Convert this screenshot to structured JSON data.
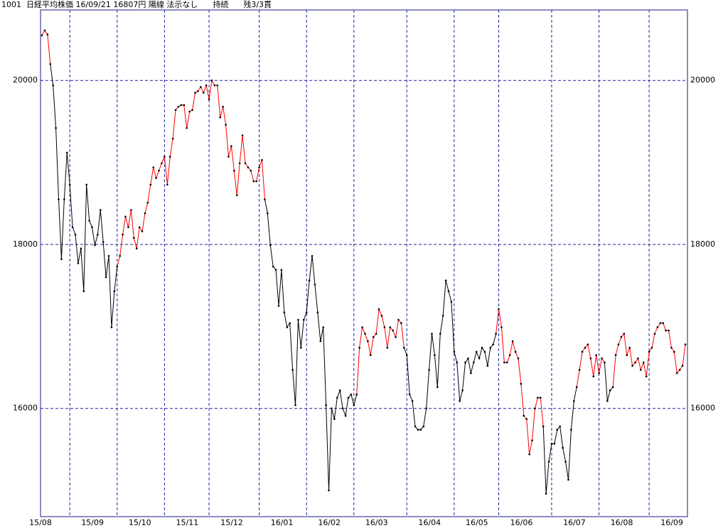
{
  "chart_data": {
    "type": "line",
    "title": "1001  日経平均株価 16/09/21 16807円 陽線 法示なし      持続      残3/3貫",
    "categories": [
      "15/08",
      null,
      null,
      null,
      null,
      null,
      null,
      null,
      null,
      null,
      "15/09",
      null,
      null,
      null,
      null,
      null,
      null,
      null,
      null,
      null,
      null,
      null,
      null,
      null,
      null,
      null,
      null,
      "15/10",
      null,
      null,
      null,
      null,
      null,
      null,
      null,
      null,
      null,
      null,
      null,
      null,
      null,
      null,
      null,
      null,
      "15/11",
      null,
      null,
      null,
      null,
      null,
      null,
      null,
      null,
      null,
      null,
      null,
      null,
      null,
      null,
      null,
      "15/12",
      null,
      null,
      null,
      null,
      null,
      null,
      null,
      null,
      null,
      null,
      null,
      null,
      null,
      null,
      null,
      null,
      null,
      "16/01",
      null,
      null,
      null,
      null,
      null,
      null,
      null,
      null,
      null,
      null,
      null,
      null,
      null,
      null,
      null,
      null,
      "16/02",
      null,
      null,
      null,
      null,
      null,
      null,
      null,
      null,
      null,
      null,
      null,
      null,
      null,
      null,
      null,
      null,
      "16/03",
      null,
      null,
      null,
      null,
      null,
      null,
      null,
      null,
      null,
      null,
      null,
      null,
      null,
      null,
      null,
      null,
      null,
      null,
      "16/04",
      null,
      null,
      null,
      null,
      null,
      null,
      null,
      null,
      null,
      null,
      null,
      null,
      null,
      null,
      null,
      null,
      "16/05",
      null,
      null,
      null,
      null,
      null,
      null,
      null,
      null,
      null,
      null,
      null,
      null,
      null,
      null,
      null,
      "16/06",
      null,
      null,
      null,
      null,
      null,
      null,
      null,
      null,
      null,
      null,
      null,
      null,
      null,
      null,
      null,
      null,
      null,
      null,
      "16/07",
      null,
      null,
      null,
      null,
      null,
      null,
      null,
      null,
      null,
      null,
      null,
      null,
      null,
      null,
      null,
      null,
      "16/08",
      null,
      null,
      null,
      null,
      null,
      null,
      null,
      null,
      null,
      null,
      null,
      null,
      null,
      null,
      null,
      null,
      null,
      "16/09",
      null,
      null,
      null,
      null,
      null,
      null,
      null,
      null,
      null,
      null,
      null,
      null,
      null
    ],
    "series": [
      {
        "color": "#ff0000",
        "values": [
          20550,
          20610,
          20560,
          20200,
          null,
          null,
          null,
          null,
          null,
          null,
          null,
          null,
          null,
          null,
          null,
          null,
          null,
          null,
          null,
          null,
          null,
          null,
          null,
          null,
          null,
          null,
          null,
          17730,
          17860,
          18120,
          18340,
          18210,
          18420,
          18080,
          17950,
          18210,
          18160,
          18380,
          18510,
          18730,
          18940,
          18810,
          18900,
          18990,
          19070,
          18730,
          19070,
          19290,
          19640,
          19680,
          19700,
          19700,
          19420,
          19620,
          19640,
          19850,
          19870,
          19920,
          19850,
          19940,
          19770,
          20000,
          19940,
          19940,
          19550,
          19680,
          19460,
          19070,
          19200,
          18900,
          18600,
          18990,
          19330,
          18990,
          18940,
          18900,
          18770,
          18770,
          18940,
          19030,
          18550,
          null,
          null,
          null,
          null,
          null,
          null,
          null,
          null,
          null,
          null,
          null,
          null,
          null,
          null,
          null,
          null,
          null,
          null,
          null,
          null,
          null,
          null,
          null,
          null,
          null,
          null,
          null,
          null,
          null,
          null,
          null,
          null,
          16170,
          16740,
          16990,
          16910,
          16820,
          16650,
          16870,
          16910,
          17210,
          17130,
          16990,
          16740,
          16990,
          16950,
          16870,
          17080,
          17040,
          16740,
          null,
          null,
          null,
          null,
          null,
          null,
          null,
          null,
          null,
          null,
          null,
          null,
          null,
          null,
          null,
          null,
          null,
          null,
          null,
          null,
          null,
          null,
          null,
          null,
          null,
          null,
          null,
          null,
          null,
          null,
          null,
          null,
          16910,
          17210,
          16990,
          16560,
          16560,
          16650,
          16820,
          16690,
          16610,
          16300,
          15910,
          15870,
          15440,
          15610,
          16000,
          16130,
          16130,
          15780,
          null,
          null,
          null,
          null,
          null,
          null,
          null,
          null,
          null,
          null,
          null,
          16260,
          16470,
          16690,
          16740,
          16780,
          16610,
          16390,
          16650,
          16430,
          16610,
          16560,
          null,
          null,
          16260,
          16650,
          16780,
          16870,
          16910,
          16650,
          16740,
          16520,
          16560,
          16610,
          16470,
          16560,
          16390,
          16690,
          16740,
          16910,
          16990,
          17040,
          17040,
          16950,
          16950,
          16740,
          16690,
          16430,
          16470,
          16520,
          16780
        ]
      },
      {
        "color": "#000000",
        "values": [
          null,
          null,
          null,
          20200,
          19940,
          19420,
          18550,
          17820,
          18550,
          19120,
          18730,
          18210,
          18120,
          17770,
          17950,
          17430,
          18730,
          18290,
          18210,
          17990,
          18120,
          18420,
          18030,
          17600,
          17860,
          16990,
          17430,
          17730,
          null,
          null,
          null,
          null,
          null,
          null,
          null,
          null,
          null,
          null,
          null,
          null,
          null,
          null,
          null,
          null,
          null,
          null,
          null,
          null,
          null,
          null,
          null,
          null,
          null,
          null,
          null,
          null,
          null,
          null,
          null,
          null,
          null,
          null,
          null,
          null,
          null,
          null,
          null,
          null,
          null,
          null,
          null,
          null,
          null,
          null,
          null,
          null,
          null,
          null,
          null,
          null,
          18550,
          18380,
          17990,
          17730,
          17690,
          17250,
          17690,
          17170,
          16990,
          17040,
          16470,
          16040,
          17080,
          16740,
          17080,
          17170,
          17560,
          17860,
          17510,
          17170,
          16820,
          16990,
          16040,
          15000,
          16000,
          15870,
          16130,
          16220,
          16000,
          15910,
          16130,
          16170,
          16040,
          16170,
          null,
          null,
          null,
          null,
          null,
          null,
          null,
          null,
          null,
          null,
          null,
          null,
          null,
          null,
          null,
          null,
          16740,
          16650,
          16170,
          16090,
          15780,
          15740,
          15740,
          15780,
          16000,
          16470,
          16910,
          16650,
          16260,
          16910,
          17130,
          17560,
          17430,
          17300,
          16690,
          16560,
          16090,
          16220,
          16560,
          16610,
          16430,
          16560,
          16690,
          16610,
          16740,
          16690,
          16520,
          16740,
          16780,
          16910,
          null,
          null,
          null,
          null,
          null,
          null,
          null,
          null,
          null,
          null,
          null,
          null,
          null,
          null,
          null,
          null,
          15780,
          14960,
          15350,
          15570,
          15570,
          15740,
          15780,
          15520,
          15350,
          15130,
          15740,
          16090,
          16260,
          null,
          null,
          null,
          null,
          null,
          null,
          null,
          null,
          null,
          16560,
          16090,
          16220,
          16260,
          null,
          null,
          null,
          null,
          null,
          null,
          null,
          null,
          null,
          null,
          null,
          null,
          null,
          null,
          null,
          null,
          null,
          null,
          null,
          null,
          null,
          null,
          null,
          null,
          null,
          null
        ]
      }
    ],
    "ylim": [
      14680,
      20860
    ],
    "yticks": [
      16000,
      18000,
      20000
    ],
    "grid": true
  }
}
